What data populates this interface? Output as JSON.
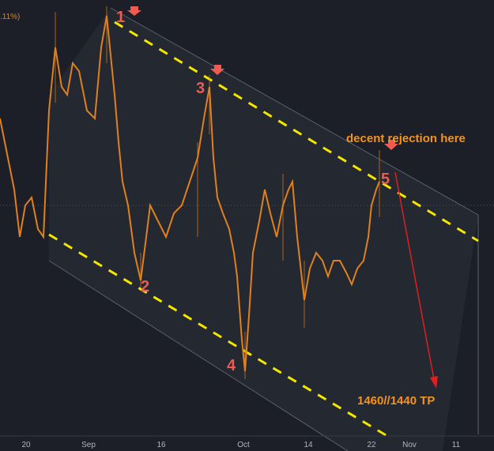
{
  "header": {
    "change": ".11%)"
  },
  "x_axis": {
    "labels": [
      "20",
      "Sep",
      "16",
      "Oct",
      "14",
      "22",
      "Nov",
      "11"
    ]
  },
  "annotations": {
    "points": [
      "1",
      "2",
      "3",
      "4",
      "5"
    ],
    "rejection": "decent rejection here",
    "target": "1460//1440 TP"
  }
}
